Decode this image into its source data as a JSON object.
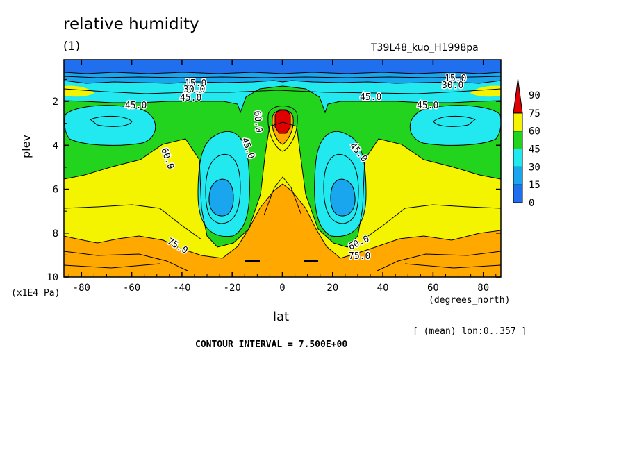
{
  "chart_data": {
    "type": "contour",
    "title": "relative humidity",
    "subtitle": "(1)",
    "experiment": "T39L48_kuo_H1998pa",
    "xlabel": "lat",
    "xunit": "(degrees_north)",
    "ylabel": "plev",
    "yunit": "(x1E4 Pa)",
    "xlim": [
      -87,
      87
    ],
    "ylim": [
      0.1,
      10
    ],
    "y_inverted": true,
    "xticks": [
      -80,
      -60,
      -40,
      -20,
      0,
      20,
      40,
      60,
      80
    ],
    "yticks": [
      2,
      4,
      6,
      8,
      10
    ],
    "colorbar": {
      "levels": [
        0,
        15,
        30,
        45,
        60,
        75,
        90
      ],
      "colors": [
        "#1f6fef",
        "#1aa6ef",
        "#22e8ef",
        "#22d41e",
        "#f4f400",
        "#ffa800",
        "#e00000"
      ]
    },
    "contour_labels": [
      "15.0",
      "30.0",
      "45.0",
      "60.0",
      "75.0"
    ],
    "contour_interval": "CONTOUR INTERVAL = 7.500E+00",
    "mean_note": "[ (mean) lon:0..357 ]"
  }
}
